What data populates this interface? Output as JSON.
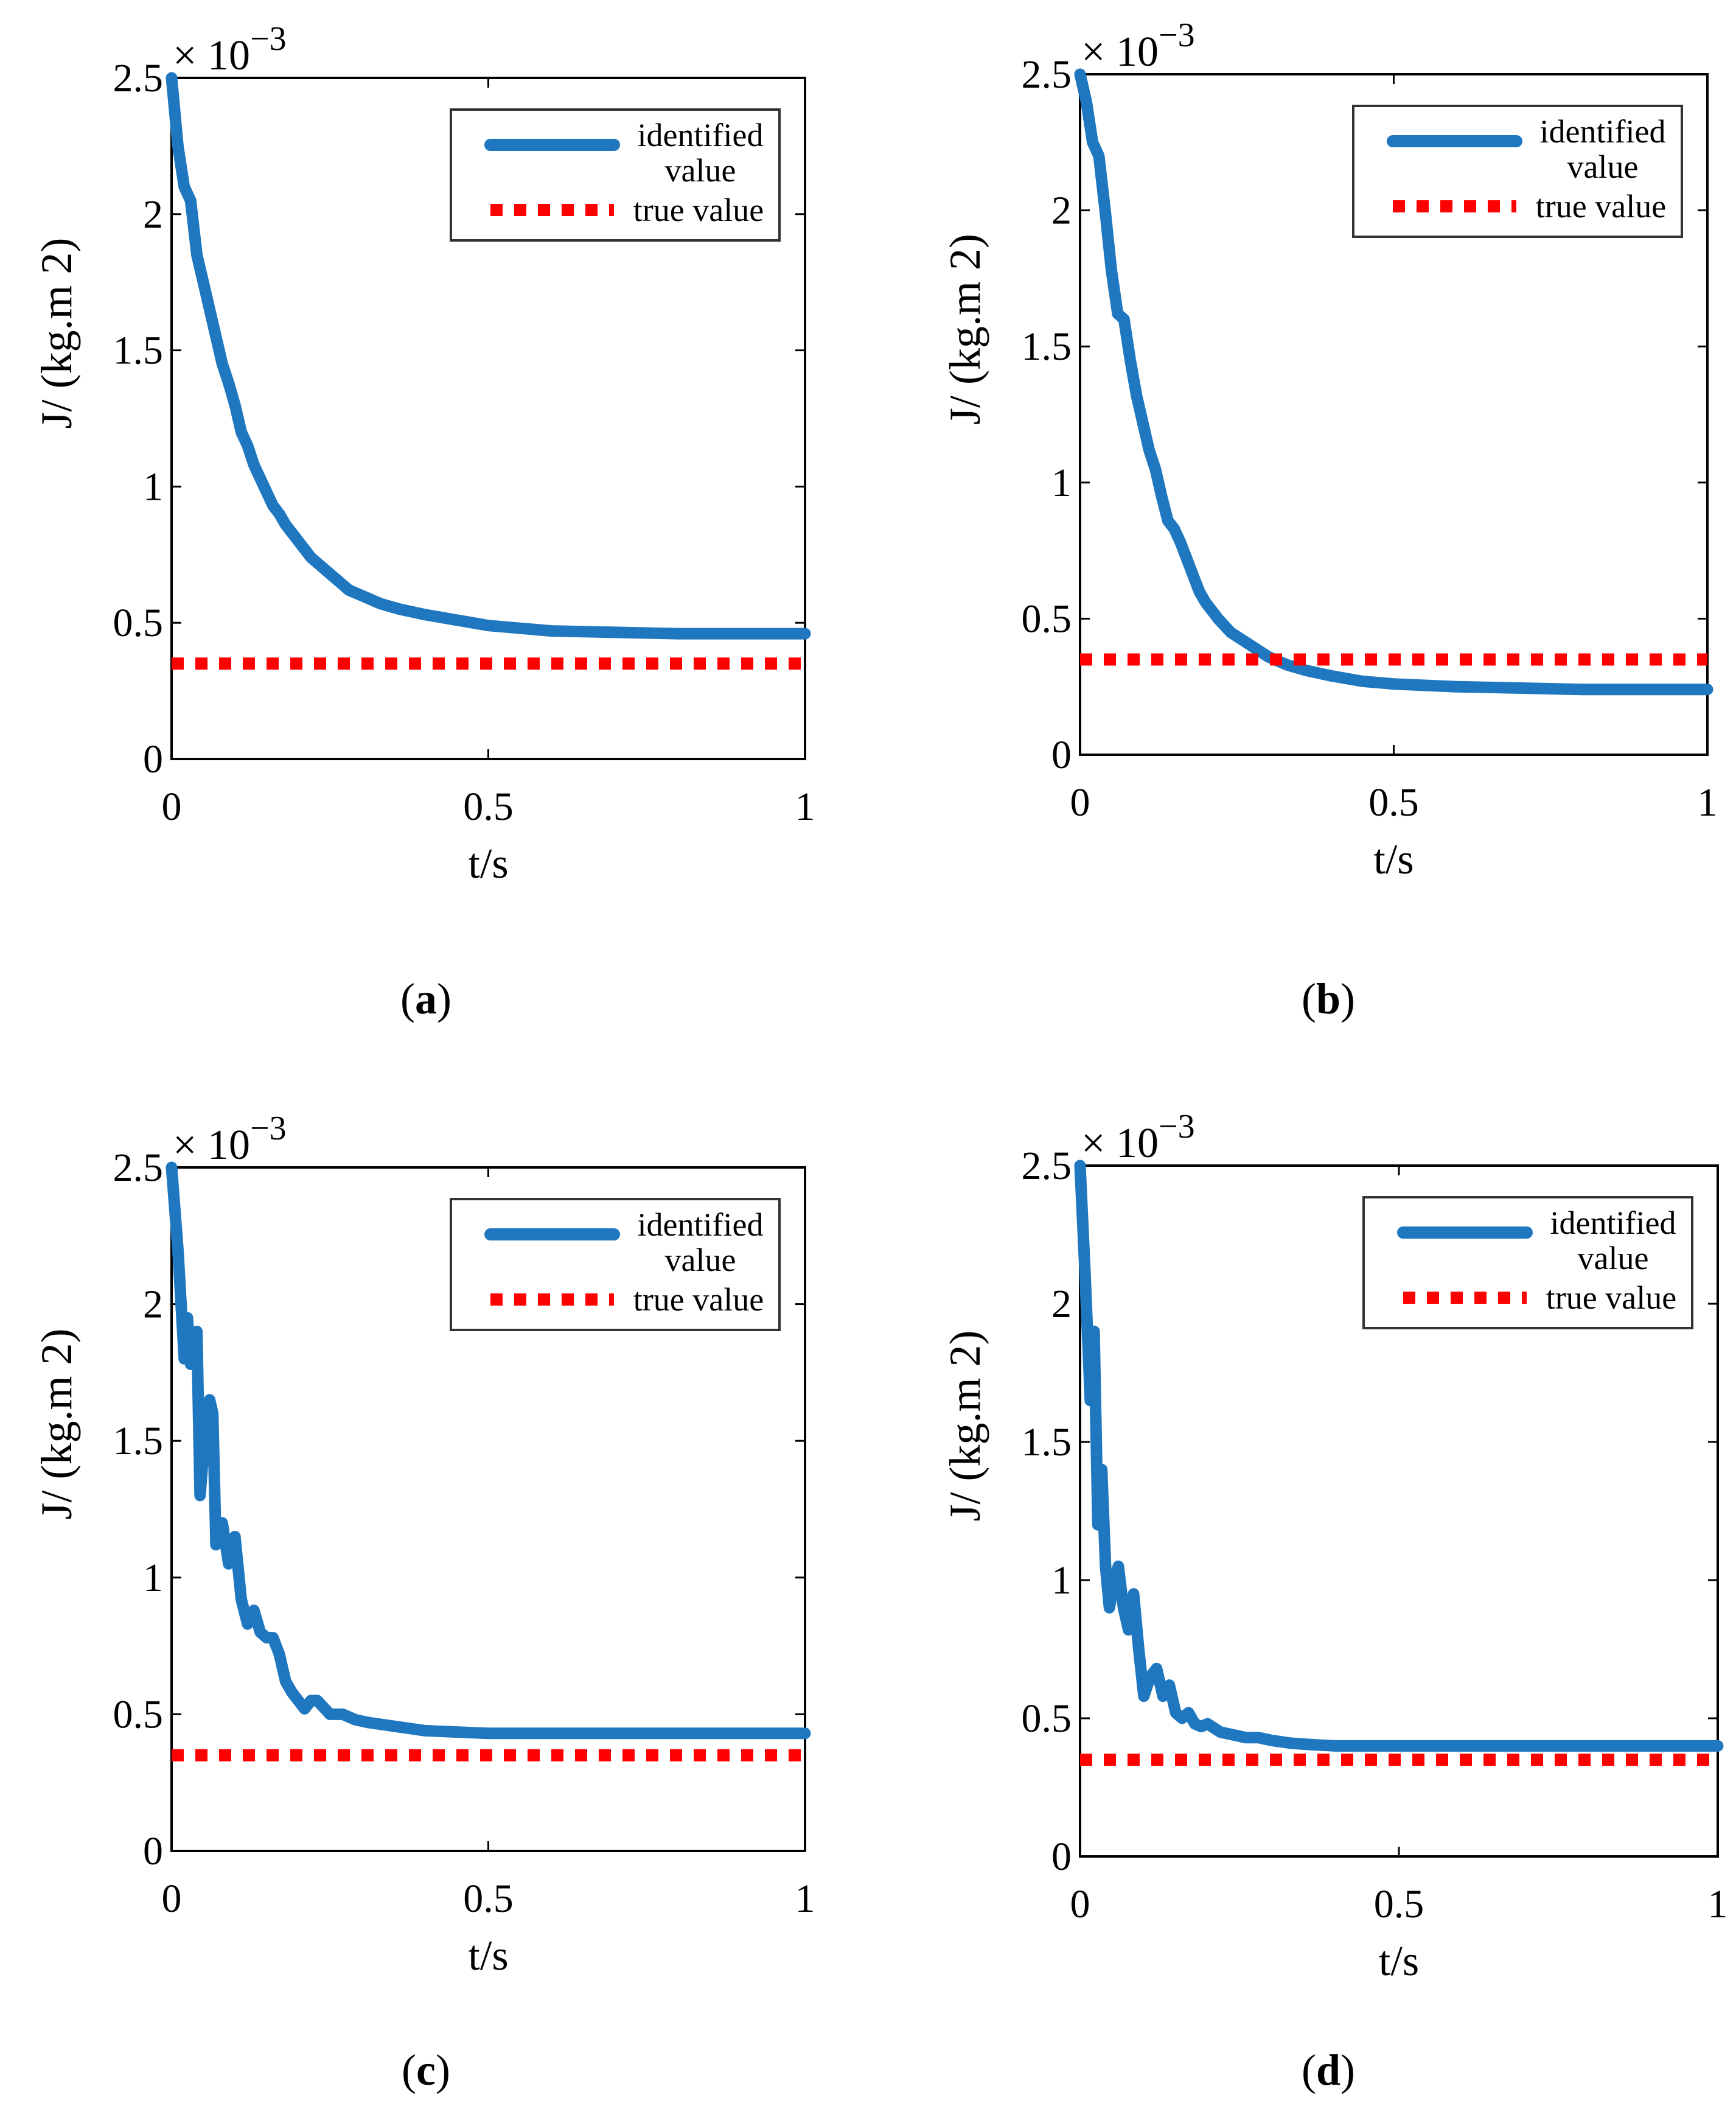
{
  "colors": {
    "identified": "#1F77C0",
    "true": "#FF0000",
    "axis": "#000000",
    "legend_border": "#333333"
  },
  "common": {
    "xlabel": "t/s",
    "ylabel": "J/ (kg.m 2)",
    "exponent_label": "× 10",
    "exponent_power": "−3",
    "xticks": [
      0,
      0.5,
      1
    ],
    "xtick_labels": [
      "0",
      "0.5",
      "1"
    ],
    "yticks": [
      0,
      0.5,
      1,
      1.5,
      2,
      2.5
    ],
    "ytick_labels": [
      "0",
      "0.5",
      "1",
      "1.5",
      "2",
      "2.5"
    ],
    "xlim": [
      0,
      1
    ],
    "ylim": [
      0,
      2.5
    ],
    "legend": {
      "identified_line1": "identified",
      "identified_line2": "value",
      "true_label": "true value"
    }
  },
  "chart_data": [
    {
      "type": "line",
      "panel_label": "a",
      "caption_open": "(",
      "caption_close": ")",
      "title": "",
      "xlabel": "t/s",
      "ylabel": "J/ (kg.m 2)",
      "xlim": [
        0,
        1
      ],
      "ylim": [
        0,
        2.5
      ],
      "y_scale_note": "× 10^-3",
      "legend_position": "top-right",
      "series": [
        {
          "name": "identified value",
          "style": "solid",
          "x": [
            0,
            0.01,
            0.02,
            0.03,
            0.04,
            0.05,
            0.06,
            0.07,
            0.08,
            0.09,
            0.1,
            0.11,
            0.12,
            0.13,
            0.14,
            0.15,
            0.16,
            0.17,
            0.18,
            0.19,
            0.2,
            0.22,
            0.24,
            0.26,
            0.28,
            0.3,
            0.33,
            0.36,
            0.4,
            0.45,
            0.5,
            0.55,
            0.6,
            0.7,
            0.8,
            0.9,
            1.0
          ],
          "values": [
            2.5,
            2.25,
            2.1,
            2.05,
            1.85,
            1.75,
            1.65,
            1.55,
            1.45,
            1.38,
            1.3,
            1.2,
            1.15,
            1.08,
            1.03,
            0.98,
            0.93,
            0.9,
            0.86,
            0.83,
            0.8,
            0.74,
            0.7,
            0.66,
            0.62,
            0.6,
            0.57,
            0.55,
            0.53,
            0.51,
            0.49,
            0.48,
            0.47,
            0.465,
            0.46,
            0.46,
            0.46
          ]
        },
        {
          "name": "true value",
          "style": "dotted",
          "x": [
            0,
            1
          ],
          "values": [
            0.35,
            0.35
          ]
        }
      ]
    },
    {
      "type": "line",
      "panel_label": "b",
      "caption_open": "(",
      "caption_close": ")",
      "title": "",
      "xlabel": "t/s",
      "ylabel": "J/ (kg.m 2)",
      "xlim": [
        0,
        1
      ],
      "ylim": [
        0,
        2.5
      ],
      "y_scale_note": "× 10^-3",
      "legend_position": "top-right",
      "series": [
        {
          "name": "identified value",
          "style": "solid",
          "x": [
            0,
            0.01,
            0.02,
            0.03,
            0.04,
            0.05,
            0.06,
            0.07,
            0.08,
            0.09,
            0.1,
            0.11,
            0.12,
            0.13,
            0.14,
            0.15,
            0.16,
            0.17,
            0.18,
            0.19,
            0.2,
            0.22,
            0.24,
            0.26,
            0.28,
            0.3,
            0.33,
            0.36,
            0.4,
            0.45,
            0.5,
            0.55,
            0.6,
            0.7,
            0.8,
            0.9,
            1.0
          ],
          "values": [
            2.5,
            2.4,
            2.25,
            2.2,
            2.0,
            1.78,
            1.62,
            1.6,
            1.45,
            1.32,
            1.22,
            1.12,
            1.05,
            0.95,
            0.86,
            0.83,
            0.78,
            0.72,
            0.66,
            0.6,
            0.56,
            0.5,
            0.45,
            0.42,
            0.39,
            0.36,
            0.33,
            0.31,
            0.29,
            0.27,
            0.26,
            0.255,
            0.25,
            0.245,
            0.24,
            0.24,
            0.24
          ]
        },
        {
          "name": "true value",
          "style": "dotted",
          "x": [
            0,
            1
          ],
          "values": [
            0.35,
            0.35
          ]
        }
      ]
    },
    {
      "type": "line",
      "panel_label": "c",
      "caption_open": "(",
      "caption_close": ")",
      "title": "",
      "xlabel": "t/s",
      "ylabel": "J/ (kg.m 2)",
      "xlim": [
        0,
        1
      ],
      "ylim": [
        0,
        2.5
      ],
      "y_scale_note": "× 10^-3",
      "legend_position": "top-right",
      "series": [
        {
          "name": "identified value",
          "style": "solid",
          "x": [
            0,
            0.01,
            0.02,
            0.025,
            0.03,
            0.04,
            0.045,
            0.05,
            0.06,
            0.065,
            0.07,
            0.08,
            0.09,
            0.1,
            0.11,
            0.12,
            0.13,
            0.14,
            0.15,
            0.16,
            0.17,
            0.18,
            0.19,
            0.2,
            0.21,
            0.22,
            0.23,
            0.25,
            0.27,
            0.29,
            0.31,
            0.34,
            0.37,
            0.4,
            0.45,
            0.5,
            0.6,
            0.7,
            0.8,
            0.9,
            1.0
          ],
          "values": [
            2.5,
            2.2,
            1.8,
            1.95,
            1.78,
            1.9,
            1.3,
            1.45,
            1.65,
            1.6,
            1.12,
            1.2,
            1.05,
            1.15,
            0.92,
            0.83,
            0.88,
            0.8,
            0.78,
            0.78,
            0.72,
            0.62,
            0.58,
            0.55,
            0.52,
            0.55,
            0.55,
            0.5,
            0.5,
            0.48,
            0.47,
            0.46,
            0.45,
            0.44,
            0.435,
            0.43,
            0.43,
            0.43,
            0.43,
            0.43,
            0.43
          ]
        },
        {
          "name": "true value",
          "style": "dotted",
          "x": [
            0,
            1
          ],
          "values": [
            0.35,
            0.35
          ]
        }
      ]
    },
    {
      "type": "line",
      "panel_label": "d",
      "caption_open": "(",
      "caption_close": ")",
      "title": "",
      "xlabel": "t/s",
      "ylabel": "J/ (kg.m 2)",
      "xlim": [
        0,
        1
      ],
      "ylim": [
        0,
        2.5
      ],
      "y_scale_note": "× 10^-3",
      "legend_position": "top-right",
      "series": [
        {
          "name": "identified value",
          "style": "solid",
          "x": [
            0,
            0.008,
            0.016,
            0.022,
            0.028,
            0.034,
            0.04,
            0.046,
            0.052,
            0.06,
            0.068,
            0.076,
            0.084,
            0.092,
            0.1,
            0.11,
            0.12,
            0.13,
            0.14,
            0.15,
            0.16,
            0.17,
            0.18,
            0.19,
            0.2,
            0.22,
            0.24,
            0.26,
            0.28,
            0.3,
            0.33,
            0.36,
            0.4,
            0.45,
            0.5,
            0.6,
            0.7,
            0.8,
            0.9,
            1.0
          ],
          "values": [
            2.5,
            2.1,
            1.65,
            1.9,
            1.2,
            1.4,
            1.05,
            0.9,
            0.98,
            1.05,
            0.9,
            0.82,
            0.95,
            0.75,
            0.58,
            0.65,
            0.68,
            0.58,
            0.62,
            0.52,
            0.5,
            0.52,
            0.48,
            0.47,
            0.48,
            0.45,
            0.44,
            0.43,
            0.43,
            0.42,
            0.41,
            0.405,
            0.4,
            0.4,
            0.4,
            0.4,
            0.4,
            0.4,
            0.4,
            0.4
          ]
        },
        {
          "name": "true value",
          "style": "dotted",
          "x": [
            0,
            1
          ],
          "values": [
            0.35,
            0.35
          ]
        }
      ]
    }
  ]
}
